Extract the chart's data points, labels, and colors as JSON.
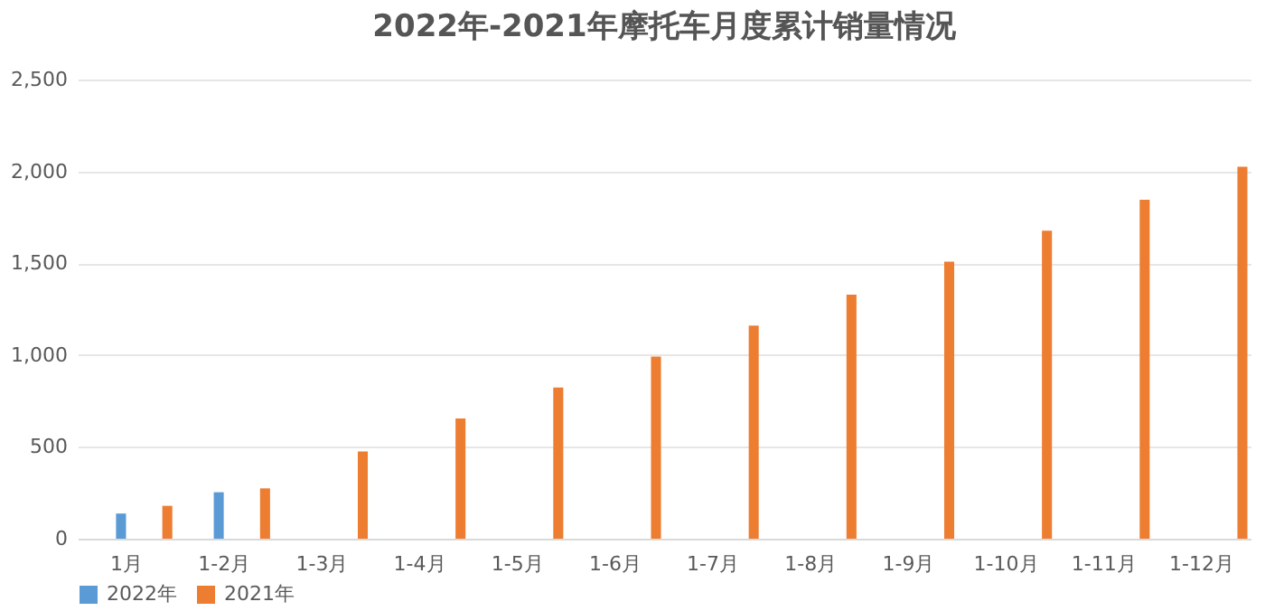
{
  "chart_data": {
    "type": "bar",
    "title": "2022年-2021年摩托车月度累计销量情况",
    "categories": [
      "1月",
      "1-2月",
      "1-3月",
      "1-4月",
      "1-5月",
      "1-6月",
      "1-7月",
      "1-8月",
      "1-9月",
      "1-10月",
      "1-11月",
      "1-12月"
    ],
    "series": [
      {
        "name": "2022年",
        "color": "#5b9bd5",
        "values": [
          137,
          253,
          null,
          null,
          null,
          null,
          null,
          null,
          null,
          null,
          null,
          null
        ]
      },
      {
        "name": "2021年",
        "color": "#ed7d31",
        "values": [
          179,
          274,
          475,
          654,
          823,
          992,
          1160,
          1329,
          1508,
          1677,
          1846,
          2025
        ]
      }
    ],
    "ylim": [
      0,
      2500
    ],
    "yticks": [
      0,
      500,
      {
        "value": 1000,
        "label": "1,000"
      },
      {
        "value": 1500,
        "label": "1,500"
      },
      {
        "value": 2000,
        "label": "2,000"
      },
      {
        "value": 2500,
        "label": "2,500"
      }
    ],
    "grid": "y",
    "legend": "bottom"
  }
}
